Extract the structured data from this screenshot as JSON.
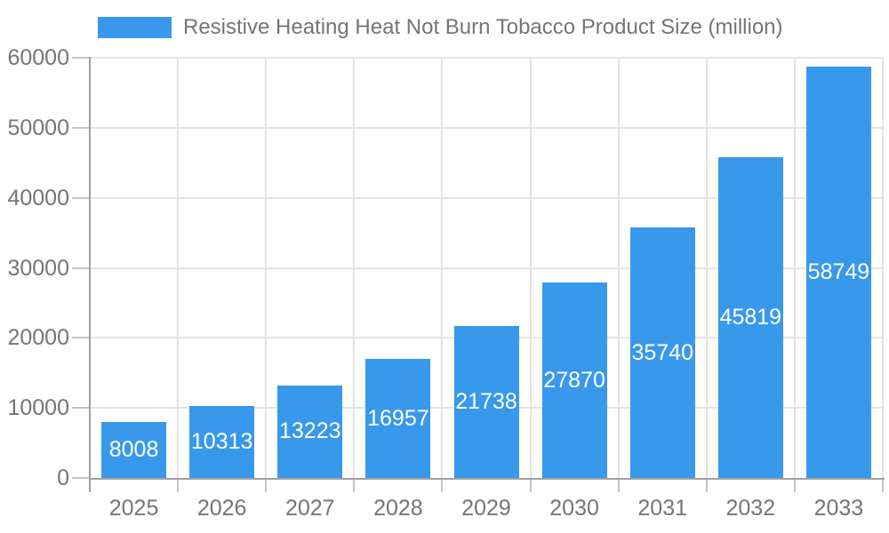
{
  "legend": {
    "label": "Resistive Heating Heat Not Burn Tobacco Product Size (million)"
  },
  "chart_data": {
    "type": "bar",
    "title": "Resistive Heating Heat Not Burn Tobacco Product Size (million)",
    "categories": [
      "2025",
      "2026",
      "2027",
      "2028",
      "2029",
      "2030",
      "2031",
      "2032",
      "2033"
    ],
    "series": [
      {
        "name": "Resistive Heating Heat Not Burn Tobacco Product Size (million)",
        "values": [
          8008,
          10313,
          13223,
          16957,
          21738,
          27870,
          35740,
          45819,
          58749
        ]
      }
    ],
    "xlabel": "",
    "ylabel": "",
    "ylim": [
      0,
      60000
    ],
    "y_ticks": [
      0,
      10000,
      20000,
      30000,
      40000,
      50000,
      60000
    ],
    "grid": true,
    "legend_position": "top",
    "value_labels_position": "inside-center",
    "colors": {
      "bar": "#3899EC",
      "grid_line": "#E4E4E4",
      "axis_line": "#A0A0A0",
      "tick": "#C4C4C4",
      "tick_label": "#757575",
      "value_label": "#FFFFFF",
      "background": "#FFFFFF"
    }
  }
}
